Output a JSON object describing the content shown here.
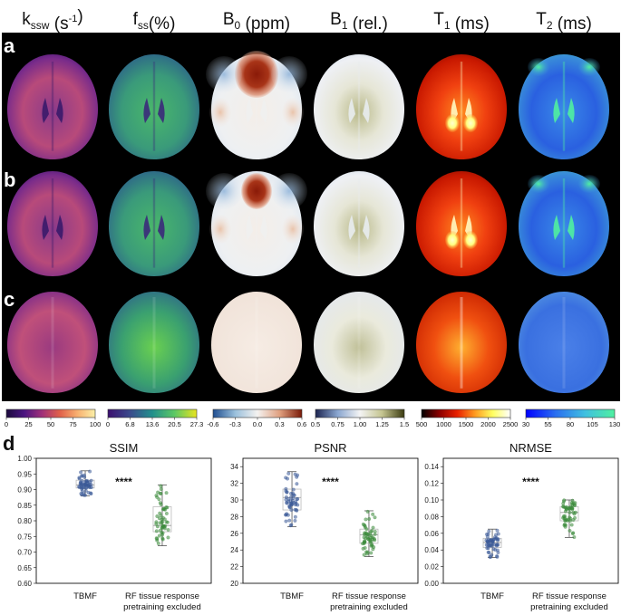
{
  "headers": [
    {
      "main": "k",
      "sub": "ssw",
      "sup": "",
      "unit": " (s",
      "unit_sup": "-1",
      "unit_end": ")"
    },
    {
      "main": "f",
      "sub": "ss",
      "sup": "",
      "unit": "(%)",
      "unit_sup": "",
      "unit_end": ""
    },
    {
      "main": "B",
      "sub": "0",
      "sup": "",
      "unit": " (ppm)",
      "unit_sup": "",
      "unit_end": ""
    },
    {
      "main": "B",
      "sub": "1",
      "sup": "",
      "unit": " (rel.)",
      "unit_sup": "",
      "unit_end": ""
    },
    {
      "main": "T",
      "sub": "1",
      "sup": "",
      "unit": " (ms)",
      "unit_sup": "",
      "unit_end": ""
    },
    {
      "main": "T",
      "sub": "2",
      "sup": "",
      "unit": " (ms)",
      "unit_sup": "",
      "unit_end": ""
    }
  ],
  "row_labels": [
    "a",
    "b",
    "c"
  ],
  "panel_d_label": "d",
  "colorbars": [
    {
      "name": "kssw",
      "colors": [
        "#1a0a3c",
        "#4a1480",
        "#a0307a",
        "#e0604a",
        "#f8b070",
        "#fbf0a8"
      ],
      "ticks": [
        "0",
        "25",
        "50",
        "75",
        "100"
      ]
    },
    {
      "name": "fss",
      "colors": [
        "#3b0f6f",
        "#3a4a8c",
        "#22908c",
        "#5cc864",
        "#e8e420"
      ],
      "ticks": [
        "0",
        "6.8",
        "13.6",
        "20.5",
        "27.3"
      ]
    },
    {
      "name": "b0",
      "colors": [
        "#1f4e90",
        "#9ac0dc",
        "#f4f2f0",
        "#e0a080",
        "#7a1a08"
      ],
      "ticks": [
        "-0.6",
        "-0.3",
        "0.0",
        "0.3",
        "0.6"
      ]
    },
    {
      "name": "b1",
      "colors": [
        "#1c2450",
        "#8aa6d0",
        "#f4f4f4",
        "#c4c490",
        "#3a3a10"
      ],
      "ticks": [
        "0.5",
        "0.75",
        "1.00",
        "1.25",
        "1.5"
      ]
    },
    {
      "name": "t1",
      "colors": [
        "#000000",
        "#8a0000",
        "#e82000",
        "#ff9a20",
        "#ffff60",
        "#ffffff"
      ],
      "ticks": [
        "500",
        "1000",
        "1500",
        "2000",
        "2500"
      ]
    },
    {
      "name": "t2",
      "colors": [
        "#0000ff",
        "#2a6ef0",
        "#40c0e0",
        "#50f0a0"
      ],
      "ticks": [
        "30",
        "55",
        "80",
        "105",
        "130"
      ]
    }
  ],
  "chart_data": [
    {
      "type": "box",
      "title": "SSIM",
      "categories": [
        "TBMF",
        "RF tissue response pretraining excluded"
      ],
      "category_lines": [
        [
          "TBMF"
        ],
        [
          "RF tissue response",
          "pretraining excluded"
        ]
      ],
      "ylim": [
        0.6,
        1.0
      ],
      "yticks": [
        "0.60",
        "0.65",
        "0.70",
        "0.75",
        "0.80",
        "0.85",
        "0.90",
        "0.95",
        "1.00"
      ],
      "series": [
        {
          "name": "TBMF",
          "color": "#3a5a98",
          "min": 0.88,
          "q1": 0.905,
          "median": 0.915,
          "q3": 0.93,
          "max": 0.96
        },
        {
          "name": "RF tissue response pretraining excluded",
          "color": "#3a8a3a",
          "min": 0.72,
          "q1": 0.765,
          "median": 0.785,
          "q3": 0.845,
          "max": 0.915
        }
      ],
      "annotation": "****"
    },
    {
      "type": "box",
      "title": "PSNR",
      "categories": [
        "TBMF",
        "RF tissue response pretraining excluded"
      ],
      "category_lines": [
        [
          "TBMF"
        ],
        [
          "RF tissue response",
          "pretraining excluded"
        ]
      ],
      "ylim": [
        20,
        35
      ],
      "yticks": [
        "20",
        "22",
        "24",
        "26",
        "28",
        "30",
        "32",
        "34"
      ],
      "series": [
        {
          "name": "TBMF",
          "color": "#3a5a98",
          "min": 26.8,
          "q1": 28.8,
          "median": 30.3,
          "q3": 31.3,
          "max": 33.4
        },
        {
          "name": "RF tissue response pretraining excluded",
          "color": "#3a8a3a",
          "min": 23.2,
          "q1": 24.8,
          "median": 25.8,
          "q3": 26.5,
          "max": 28.7
        }
      ],
      "annotation": "****"
    },
    {
      "type": "box",
      "title": "NRMSE",
      "categories": [
        "TBMF",
        "RF tissue response pretraining excluded"
      ],
      "category_lines": [
        [
          "TBMF"
        ],
        [
          "RF tissue response",
          "pretraining excluded"
        ]
      ],
      "ylim": [
        0.0,
        0.15
      ],
      "yticks": [
        "0.00",
        "0.02",
        "0.04",
        "0.06",
        "0.08",
        "0.10",
        "0.12",
        "0.14"
      ],
      "series": [
        {
          "name": "TBMF",
          "color": "#3a5a98",
          "min": 0.031,
          "q1": 0.043,
          "median": 0.049,
          "q3": 0.054,
          "max": 0.065
        },
        {
          "name": "RF tissue response pretraining excluded",
          "color": "#3a8a3a",
          "min": 0.055,
          "q1": 0.075,
          "median": 0.085,
          "q3": 0.092,
          "max": 0.1
        }
      ],
      "annotation": "****"
    }
  ]
}
